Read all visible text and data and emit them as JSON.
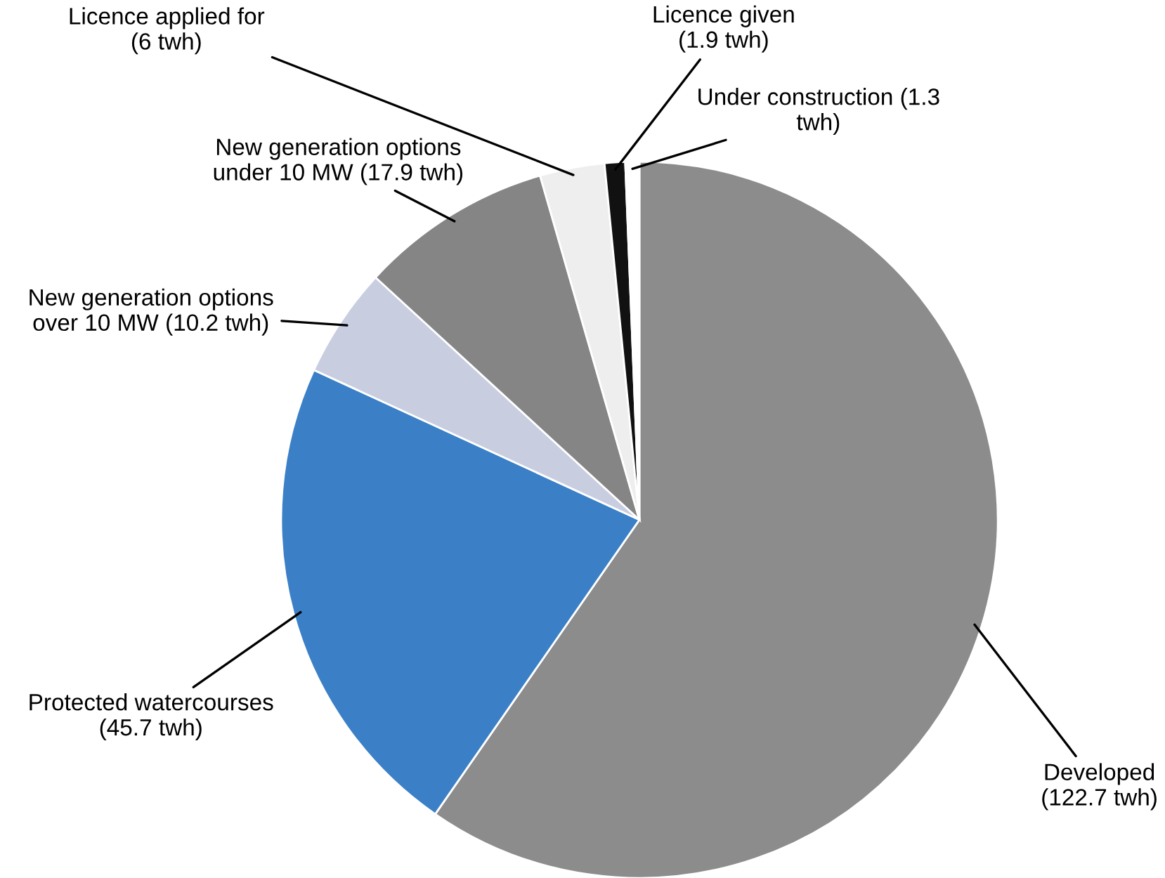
{
  "chart_data": {
    "type": "pie",
    "categories": [
      "Developed\n(122.7 twh)",
      "Protected watercourses\n(45.7 twh)",
      "New generation options\nover 10 MW (10.2 twh)",
      "New generation options\nunder 10 MW (17.9 twh)",
      "Licence applied for\n(6 twh)",
      "Licence given\n(1.9 twh)",
      "Under construction (1.3\ntwh)"
    ],
    "values": [
      122.7,
      45.7,
      10.2,
      17.9,
      6,
      1.9,
      1.3
    ],
    "colors": [
      "#8c8c8c",
      "#3b80c6",
      "#c8cde0",
      "#858585",
      "#eeeeee",
      "#111111",
      "#ffffff"
    ],
    "legend": false
  }
}
